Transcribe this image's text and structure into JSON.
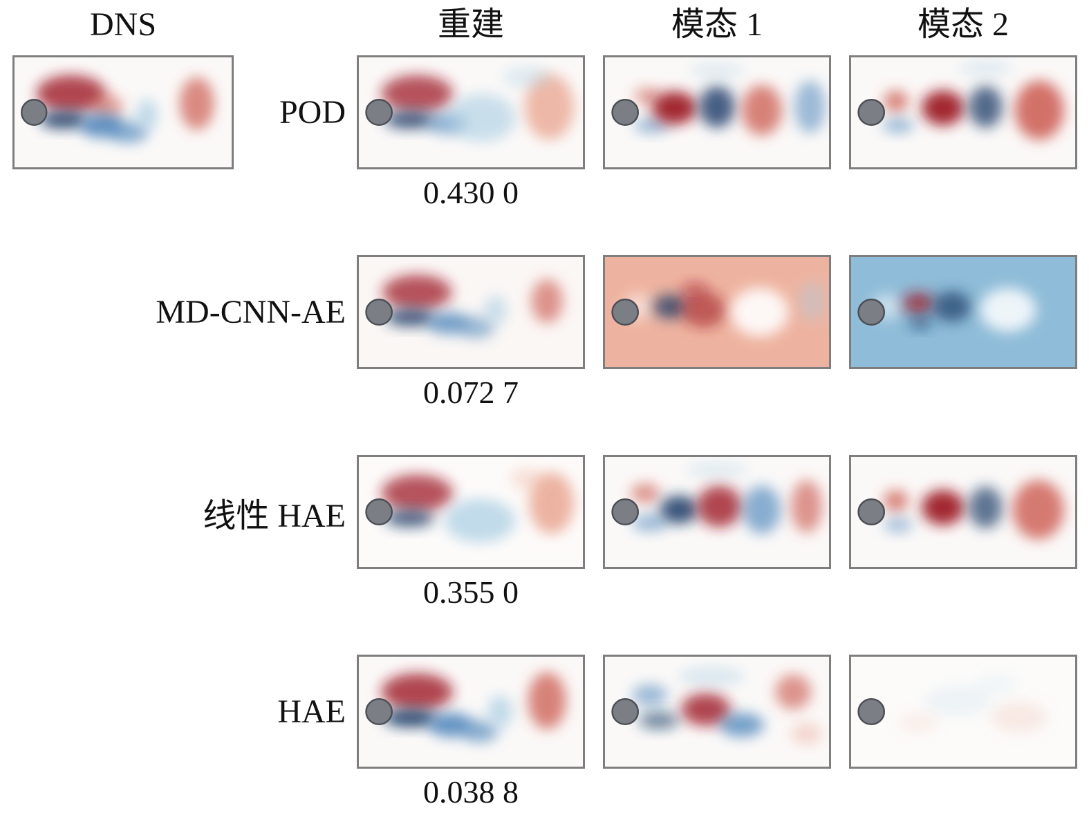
{
  "figure": {
    "column_headers": {
      "dns": "DNS",
      "recon": "重建",
      "mode1": "模态 1",
      "mode2": "模态 2"
    },
    "rows": [
      {
        "id": "pod",
        "label": "POD",
        "error": "0.430 0"
      },
      {
        "id": "mdcnnae",
        "label": "MD-CNN-AE",
        "error": "0.072 7"
      },
      {
        "id": "linhae",
        "label": "线性 HAE",
        "error": "0.355 0"
      },
      {
        "id": "hae",
        "label": "HAE",
        "error": "0.038 8"
      }
    ]
  },
  "colors": {
    "R": "#9e1b28",
    "r": "#c85043",
    "p": "#e9a violet",
    "pink": "#e8a18c",
    "B": "#173a66",
    "b": "#3d7ab5",
    "l": "#a8cde2",
    "w": "#ffffff",
    "cylinder": "#7b7f85",
    "cylinder_edge": "#4a4e54",
    "panel_border": "#7e7e7e"
  },
  "panels": {
    "dns": {
      "bg": "#fbf9f8",
      "blobs": [
        [
          52,
          33,
          32,
          17,
          "R",
          0.8
        ],
        [
          85,
          45,
          15,
          12,
          "r",
          0.5
        ],
        [
          45,
          57,
          22,
          8,
          "B",
          0.85
        ],
        [
          80,
          62,
          20,
          11,
          "b",
          0.8
        ],
        [
          105,
          68,
          18,
          10,
          "b",
          0.6
        ],
        [
          122,
          52,
          10,
          14,
          "l",
          0.7
        ],
        [
          168,
          42,
          16,
          24,
          "r",
          0.65
        ]
      ]
    },
    "pod_recon": {
      "bg": "#fbf9f8",
      "blobs": [
        [
          52,
          33,
          32,
          17,
          "R",
          0.75
        ],
        [
          45,
          57,
          22,
          8,
          "B",
          0.8
        ],
        [
          78,
          60,
          18,
          10,
          "b",
          0.55
        ],
        [
          110,
          55,
          30,
          22,
          "l",
          0.6
        ],
        [
          170,
          45,
          22,
          30,
          "pink",
          0.75
        ],
        [
          150,
          18,
          22,
          10,
          "l",
          0.35
        ]
      ]
    },
    "pod_mode1": {
      "bg": "#fbf9f8",
      "blobs": [
        [
          42,
          62,
          16,
          7,
          "b",
          0.5
        ],
        [
          38,
          35,
          12,
          8,
          "r",
          0.5
        ],
        [
          62,
          46,
          20,
          15,
          "R",
          0.95
        ],
        [
          100,
          45,
          16,
          19,
          "B",
          0.8
        ],
        [
          140,
          48,
          18,
          23,
          "r",
          0.7
        ],
        [
          183,
          45,
          14,
          24,
          "b",
          0.5
        ],
        [
          100,
          12,
          25,
          8,
          "l",
          0.3
        ]
      ]
    },
    "pod_mode2": {
      "bg": "#fbf9f8",
      "blobs": [
        [
          40,
          40,
          11,
          10,
          "r",
          0.7
        ],
        [
          42,
          62,
          14,
          7,
          "b",
          0.5
        ],
        [
          82,
          46,
          19,
          16,
          "R",
          0.95
        ],
        [
          120,
          45,
          15,
          19,
          "B",
          0.75
        ],
        [
          168,
          48,
          22,
          27,
          "r",
          0.8
        ],
        [
          120,
          10,
          25,
          8,
          "l",
          0.3
        ]
      ]
    },
    "md_recon": {
      "bg": "#fbf7f5",
      "blobs": [
        [
          52,
          32,
          31,
          16,
          "R",
          0.75
        ],
        [
          46,
          55,
          22,
          8,
          "B",
          0.8
        ],
        [
          80,
          60,
          19,
          10,
          "b",
          0.7
        ],
        [
          105,
          64,
          16,
          10,
          "b",
          0.5
        ],
        [
          122,
          48,
          10,
          13,
          "l",
          0.6
        ],
        [
          168,
          40,
          14,
          20,
          "r",
          0.6
        ]
      ]
    },
    "md_mode1": {
      "bg": "#eeb3a0",
      "blobs": [
        [
          30,
          45,
          14,
          12,
          "w",
          0.5
        ],
        [
          58,
          45,
          15,
          11,
          "B",
          0.75
        ],
        [
          88,
          48,
          20,
          16,
          "R",
          0.6
        ],
        [
          80,
          30,
          12,
          7,
          "R",
          0.5
        ],
        [
          138,
          50,
          26,
          22,
          "w",
          0.9
        ],
        [
          185,
          40,
          12,
          18,
          "l",
          0.4
        ]
      ]
    },
    "md_mode2": {
      "bg": "#8fbcd8",
      "blobs": [
        [
          32,
          45,
          14,
          12,
          "w",
          0.5
        ],
        [
          60,
          42,
          14,
          10,
          "R",
          0.75
        ],
        [
          90,
          45,
          17,
          14,
          "B",
          0.7
        ],
        [
          62,
          60,
          10,
          6,
          "B",
          0.6
        ],
        [
          140,
          48,
          25,
          20,
          "w",
          0.85
        ]
      ]
    },
    "lin_recon": {
      "bg": "#fdfbfa",
      "blobs": [
        [
          52,
          33,
          32,
          17,
          "R",
          0.75
        ],
        [
          45,
          56,
          22,
          8,
          "B",
          0.75
        ],
        [
          108,
          58,
          32,
          20,
          "l",
          0.7
        ],
        [
          172,
          42,
          20,
          28,
          "pink",
          0.8
        ],
        [
          150,
          20,
          15,
          10,
          "pink",
          0.3
        ]
      ]
    },
    "lin_mode1": {
      "bg": "#fbf9f8",
      "blobs": [
        [
          36,
          33,
          13,
          9,
          "r",
          0.6
        ],
        [
          40,
          60,
          16,
          8,
          "b",
          0.5
        ],
        [
          66,
          48,
          17,
          13,
          "B",
          0.85
        ],
        [
          102,
          45,
          20,
          19,
          "R",
          0.8
        ],
        [
          140,
          48,
          17,
          22,
          "b",
          0.6
        ],
        [
          180,
          45,
          14,
          24,
          "r",
          0.6
        ],
        [
          100,
          12,
          28,
          8,
          "l",
          0.3
        ]
      ]
    },
    "lin_mode2": {
      "bg": "#fbf9f8",
      "blobs": [
        [
          40,
          40,
          11,
          10,
          "r",
          0.7
        ],
        [
          42,
          62,
          13,
          7,
          "b",
          0.45
        ],
        [
          82,
          46,
          19,
          16,
          "R",
          0.95
        ],
        [
          120,
          46,
          15,
          19,
          "B",
          0.7
        ],
        [
          167,
          48,
          23,
          27,
          "r",
          0.75
        ]
      ]
    },
    "hae_recon": {
      "bg": "#fbf9f8",
      "blobs": [
        [
          52,
          32,
          32,
          17,
          "R",
          0.8
        ],
        [
          46,
          56,
          24,
          8,
          "B",
          0.9
        ],
        [
          82,
          62,
          20,
          11,
          "b",
          0.8
        ],
        [
          108,
          68,
          16,
          10,
          "b",
          0.6
        ],
        [
          126,
          50,
          11,
          15,
          "l",
          0.7
        ],
        [
          168,
          40,
          17,
          26,
          "r",
          0.7
        ]
      ]
    },
    "hae_mode1": {
      "bg": "#fbf9f8",
      "blobs": [
        [
          40,
          35,
          16,
          10,
          "b",
          0.5
        ],
        [
          48,
          58,
          18,
          8,
          "B",
          0.6
        ],
        [
          90,
          48,
          22,
          15,
          "R",
          0.8
        ],
        [
          122,
          62,
          20,
          11,
          "b",
          0.7
        ],
        [
          95,
          18,
          30,
          9,
          "l",
          0.4
        ],
        [
          168,
          32,
          16,
          16,
          "r",
          0.6
        ],
        [
          180,
          70,
          14,
          10,
          "pink",
          0.4
        ]
      ]
    },
    "hae_mode2": {
      "bg": "#fcfbfa",
      "blobs": [
        [
          95,
          40,
          30,
          14,
          "l",
          0.18
        ],
        [
          150,
          55,
          25,
          14,
          "pink",
          0.2
        ],
        [
          60,
          60,
          18,
          9,
          "pink",
          0.15
        ],
        [
          130,
          25,
          20,
          10,
          "l",
          0.12
        ]
      ]
    }
  }
}
